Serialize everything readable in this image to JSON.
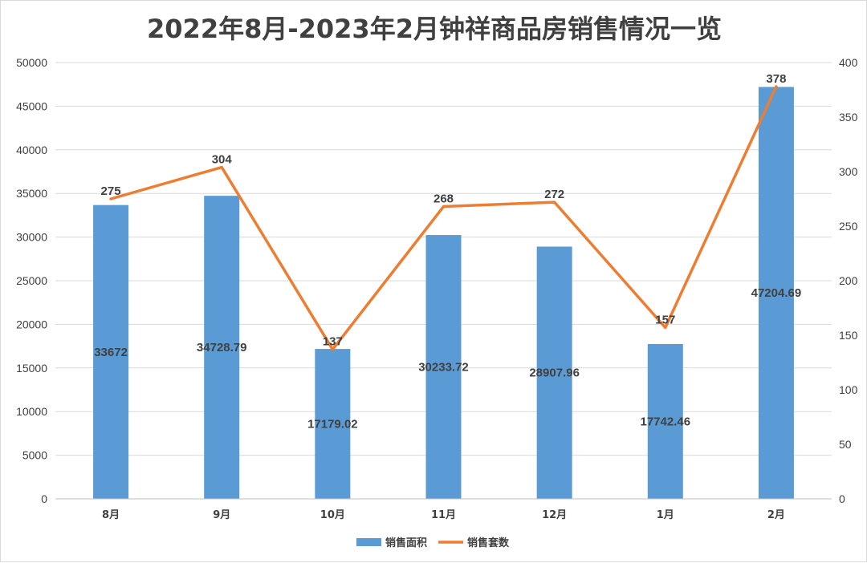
{
  "chart_data": {
    "type": "bar",
    "title": "2022年8月-2023年2月钟祥商品房销售情况一览",
    "categories": [
      "8月",
      "9月",
      "10月",
      "11月",
      "12月",
      "1月",
      "2月"
    ],
    "series": [
      {
        "name": "销售面积",
        "type": "bar",
        "axis": "left",
        "color": "#5b9bd5",
        "values": [
          33672,
          34728.79,
          17179.02,
          30233.72,
          28907.96,
          17742.46,
          47204.69
        ],
        "labels": [
          "33672",
          "34728.79",
          "17179.02",
          "30233.72",
          "28907.96",
          "17742.46",
          "47204.69"
        ]
      },
      {
        "name": "销售套数",
        "type": "line",
        "axis": "right",
        "color": "#ed7d31",
        "values": [
          275,
          304,
          137,
          268,
          272,
          157,
          378
        ],
        "labels": [
          "275",
          "304",
          "137",
          "268",
          "272",
          "157",
          "378"
        ]
      }
    ],
    "ylim": [
      0,
      50000
    ],
    "y2lim": [
      0,
      400
    ],
    "yticks": [
      "0",
      "5000",
      "10000",
      "15000",
      "20000",
      "25000",
      "30000",
      "35000",
      "40000",
      "45000",
      "50000"
    ],
    "y2ticks": [
      "0",
      "50",
      "100",
      "150",
      "200",
      "250",
      "300",
      "350",
      "400"
    ],
    "grid": true,
    "legend_position": "bottom"
  }
}
